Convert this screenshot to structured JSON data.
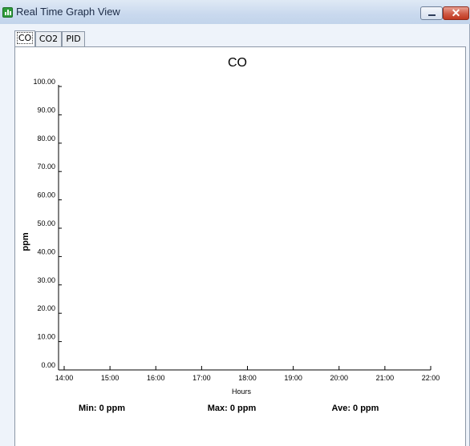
{
  "window": {
    "title": "Real Time Graph View",
    "icon": "bar-chart-icon",
    "close_glyph": "✕"
  },
  "tabs": [
    {
      "label": "CO",
      "active": true
    },
    {
      "label": "CO2",
      "active": false
    },
    {
      "label": "PID",
      "active": false
    }
  ],
  "stats": {
    "min": "Min: 0 ppm",
    "max": "Max: 0 ppm",
    "ave": "Ave: 0 ppm"
  },
  "colors": {
    "axis": "#000000",
    "title_bar": "#c9d9ee",
    "close_button": "#cf5a45",
    "app_icon": "#2e9b3a"
  },
  "chart_data": {
    "type": "line",
    "title": "CO",
    "xlabel": "Hours",
    "ylabel": "ppm",
    "x_ticks": [
      "14:00",
      "15:00",
      "16:00",
      "17:00",
      "18:00",
      "19:00",
      "20:00",
      "21:00",
      "22:00"
    ],
    "y_ticks": [
      "0.00",
      "10.00",
      "20.00",
      "30.00",
      "40.00",
      "50.00",
      "60.00",
      "70.00",
      "80.00",
      "90.00",
      "100.00"
    ],
    "xlim": [
      "14:00",
      "22:00"
    ],
    "ylim": [
      0,
      100
    ],
    "series": [],
    "grid": false
  }
}
